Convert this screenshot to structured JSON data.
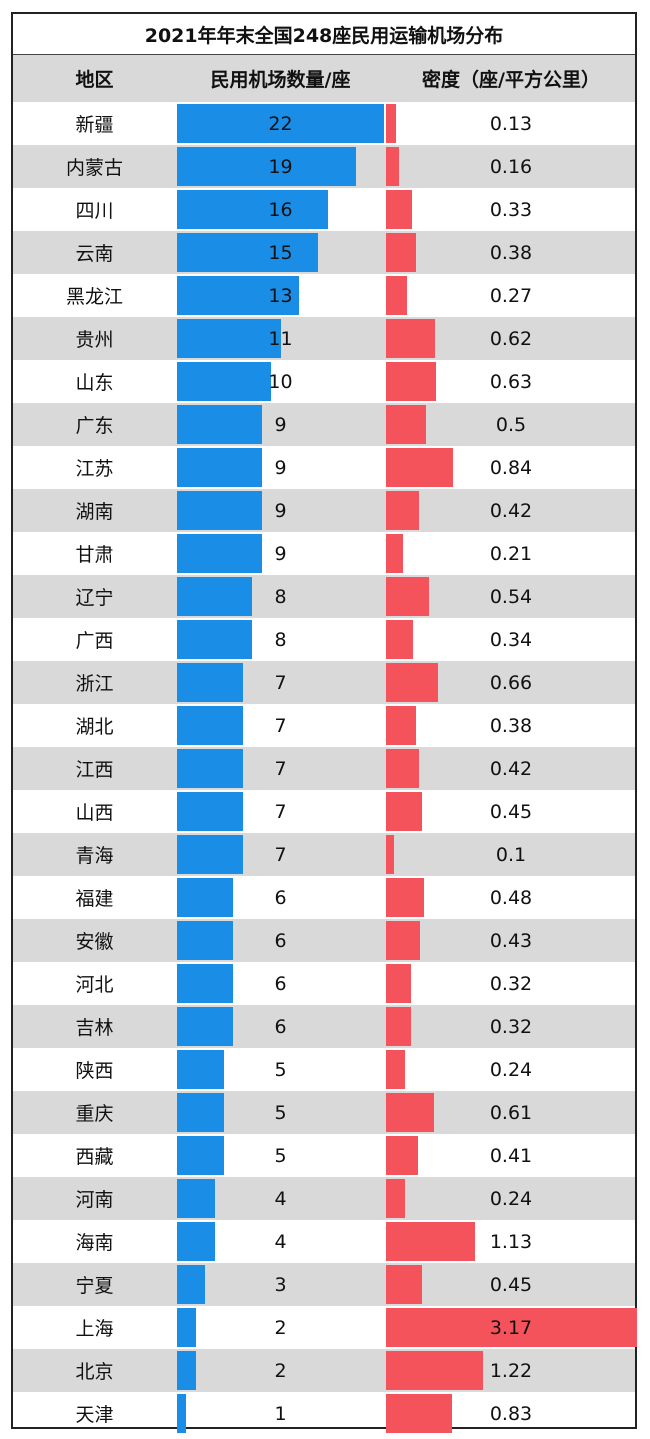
{
  "chart_data": {
    "type": "table",
    "title": "2021年年末全国248座民用运输机场分布",
    "columns": [
      "地区",
      "民用机场数量/座",
      "密度（座/平方公里）"
    ],
    "colors": {
      "count_bar": "#1a8ee6",
      "density_bar": "#f4535c",
      "shade": "#d9d9d9"
    },
    "rows": [
      {
        "region": "新疆",
        "count": 22,
        "density": "0.13"
      },
      {
        "region": "内蒙古",
        "count": 19,
        "density": "0.16"
      },
      {
        "region": "四川",
        "count": 16,
        "density": "0.33"
      },
      {
        "region": "云南",
        "count": 15,
        "density": "0.38"
      },
      {
        "region": "黑龙江",
        "count": 13,
        "density": "0.27"
      },
      {
        "region": "贵州",
        "count": 11,
        "density": "0.62"
      },
      {
        "region": "山东",
        "count": 10,
        "density": "0.63"
      },
      {
        "region": "广东",
        "count": 9,
        "density": "0.5"
      },
      {
        "region": "江苏",
        "count": 9,
        "density": "0.84"
      },
      {
        "region": "湖南",
        "count": 9,
        "density": "0.42"
      },
      {
        "region": "甘肃",
        "count": 9,
        "density": "0.21"
      },
      {
        "region": "辽宁",
        "count": 8,
        "density": "0.54"
      },
      {
        "region": "广西",
        "count": 8,
        "density": "0.34"
      },
      {
        "region": "浙江",
        "count": 7,
        "density": "0.66"
      },
      {
        "region": "湖北",
        "count": 7,
        "density": "0.38"
      },
      {
        "region": "江西",
        "count": 7,
        "density": "0.42"
      },
      {
        "region": "山西",
        "count": 7,
        "density": "0.45"
      },
      {
        "region": "青海",
        "count": 7,
        "density": "0.1"
      },
      {
        "region": "福建",
        "count": 6,
        "density": "0.48"
      },
      {
        "region": "安徽",
        "count": 6,
        "density": "0.43"
      },
      {
        "region": "河北",
        "count": 6,
        "density": "0.32"
      },
      {
        "region": "吉林",
        "count": 6,
        "density": "0.32"
      },
      {
        "region": "陕西",
        "count": 5,
        "density": "0.24"
      },
      {
        "region": "重庆",
        "count": 5,
        "density": "0.61"
      },
      {
        "region": "西藏",
        "count": 5,
        "density": "0.41"
      },
      {
        "region": "河南",
        "count": 4,
        "density": "0.24"
      },
      {
        "region": "海南",
        "count": 4,
        "density": "1.13"
      },
      {
        "region": "宁夏",
        "count": 3,
        "density": "0.45"
      },
      {
        "region": "上海",
        "count": 2,
        "density": "3.17"
      },
      {
        "region": "北京",
        "count": 2,
        "density": "1.22"
      },
      {
        "region": "天津",
        "count": 1,
        "density": "0.83"
      }
    ]
  }
}
